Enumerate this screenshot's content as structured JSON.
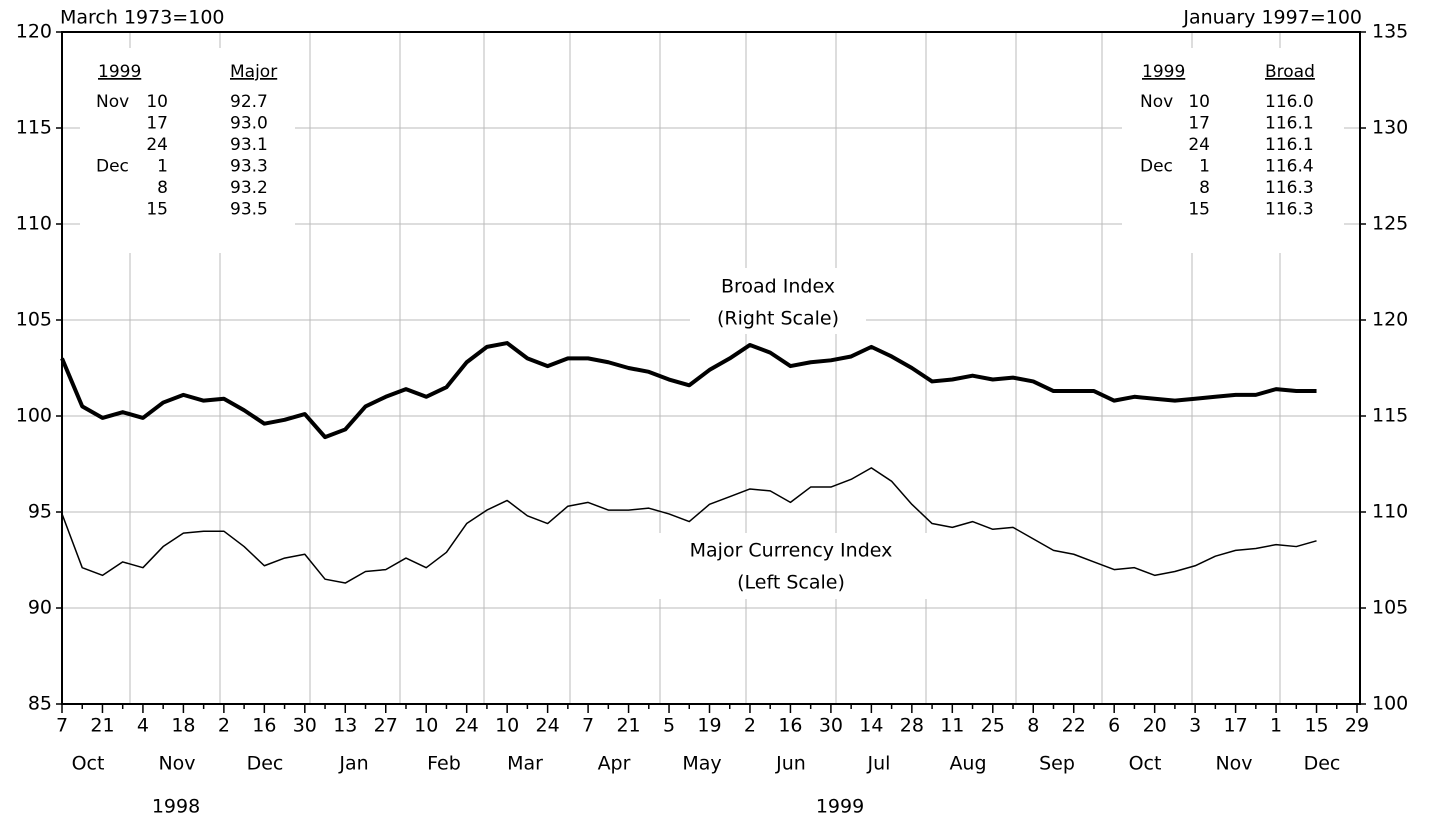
{
  "chart_data": {
    "type": "line",
    "y_label": "March 1973=100",
    "y2_label": "January 1997=100",
    "categories": [
      "7",
      null,
      "21",
      null,
      "4",
      null,
      "18",
      null,
      "2",
      null,
      "16",
      null,
      "30",
      null,
      "13",
      null,
      "27",
      null,
      "10",
      null,
      "24",
      null,
      "10",
      null,
      "24",
      null,
      "7",
      null,
      "21",
      null,
      "5",
      null,
      "19",
      null,
      "2",
      null,
      "16",
      null,
      "30",
      null,
      "14",
      null,
      "28",
      null,
      "11",
      null,
      "25",
      null,
      "8",
      null,
      "22",
      null,
      "6",
      null,
      "20",
      null,
      "3",
      null,
      "17",
      null,
      "1",
      null,
      "15",
      null,
      "29"
    ],
    "months": [
      "Oct",
      "Nov",
      "Dec",
      "Jan",
      "Feb",
      "Mar",
      "Apr",
      "May",
      "Jun",
      "Jul",
      "Aug",
      "Sep",
      "Oct",
      "Nov",
      "Dec"
    ],
    "years": [
      "1998",
      "1999"
    ],
    "series": [
      {
        "name": "Broad Index",
        "note": "(Right Scale)",
        "axis": "y2",
        "color": "#000000",
        "values": [
          118.0,
          115.5,
          114.9,
          115.2,
          114.9,
          115.7,
          116.1,
          115.8,
          115.9,
          115.3,
          114.6,
          114.8,
          115.1,
          113.9,
          114.3,
          115.5,
          116.0,
          116.4,
          116.0,
          116.5,
          117.8,
          118.6,
          118.8,
          118.0,
          117.6,
          118.0,
          118.0,
          117.8,
          117.5,
          117.3,
          116.9,
          116.6,
          117.4,
          118.0,
          118.7,
          118.3,
          117.6,
          117.8,
          117.9,
          118.1,
          118.6,
          118.1,
          117.5,
          116.8,
          116.9,
          117.1,
          116.9,
          117.0,
          116.8,
          116.3,
          116.3,
          116.3,
          115.8,
          116.0,
          115.9,
          115.8,
          115.9,
          116.0,
          116.1,
          116.1,
          116.4,
          116.3,
          116.3,
          null,
          null
        ]
      },
      {
        "name": "Major Currency Index",
        "note": "(Left Scale)",
        "axis": "y",
        "color": "#000000",
        "values": [
          94.9,
          92.1,
          91.7,
          92.4,
          92.1,
          93.2,
          93.9,
          94.0,
          94.0,
          93.2,
          92.2,
          92.6,
          92.8,
          91.5,
          91.3,
          91.9,
          92.0,
          92.6,
          92.1,
          92.9,
          94.4,
          95.1,
          95.6,
          94.8,
          94.4,
          95.3,
          95.5,
          95.1,
          95.1,
          95.2,
          94.9,
          94.5,
          95.4,
          95.8,
          96.2,
          96.1,
          95.5,
          96.3,
          96.3,
          96.7,
          97.3,
          96.6,
          95.4,
          94.4,
          94.2,
          94.5,
          94.1,
          94.2,
          93.6,
          93.0,
          92.8,
          92.4,
          92.0,
          92.1,
          91.7,
          91.9,
          92.2,
          92.7,
          93.0,
          93.1,
          93.3,
          93.2,
          93.5,
          null,
          null
        ]
      }
    ],
    "ylim": [
      85,
      120
    ],
    "yticks": [
      85,
      90,
      95,
      100,
      105,
      110,
      115,
      120
    ],
    "y2lim": [
      100,
      135
    ],
    "y2ticks": [
      100,
      105,
      110,
      115,
      120,
      125,
      130,
      135
    ],
    "grid": true,
    "tables": [
      {
        "year": "1999",
        "column": "Major",
        "rows": [
          [
            "Nov",
            "10",
            "92.7"
          ],
          [
            null,
            "17",
            "93.0"
          ],
          [
            null,
            "24",
            "93.1"
          ],
          [
            "Dec",
            "1",
            "93.3"
          ],
          [
            null,
            "8",
            "93.2"
          ],
          [
            null,
            "15",
            "93.5"
          ]
        ]
      },
      {
        "year": "1999",
        "column": "Broad",
        "rows": [
          [
            "Nov",
            "10",
            "116.0"
          ],
          [
            null,
            "17",
            "116.1"
          ],
          [
            null,
            "24",
            "116.1"
          ],
          [
            "Dec",
            "1",
            "116.4"
          ],
          [
            null,
            "8",
            "116.3"
          ],
          [
            null,
            "15",
            "116.3"
          ]
        ]
      }
    ]
  }
}
